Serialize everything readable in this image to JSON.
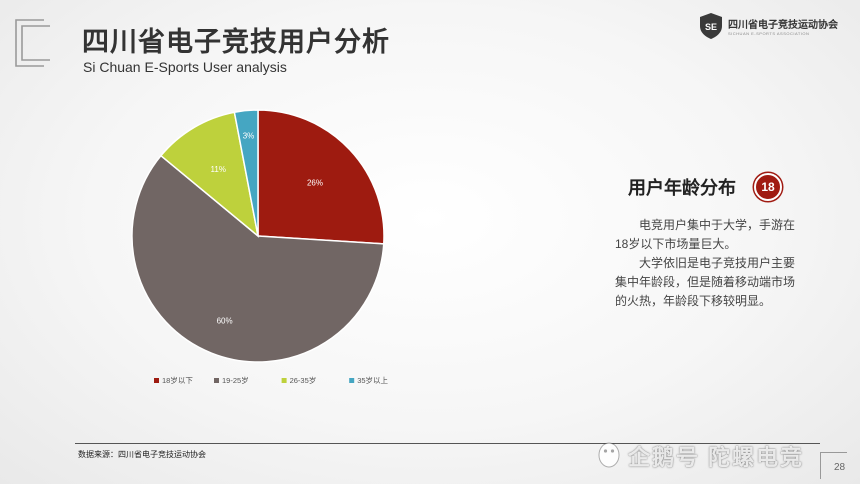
{
  "header": {
    "title": "四川省电子竞技用户分析",
    "subtitle": "Si Chuan E-Sports User analysis"
  },
  "association": {
    "name": "四川省电子竞技运动协会",
    "name_en": "SICHUAN E-SPORTS ASSOCIATION",
    "badge_text": "SE"
  },
  "side": {
    "title": "用户年龄分布",
    "badge": "18",
    "paragraphs": [
      "电竞用户集中于大学，手游在18岁以下市场量巨大。",
      "大学依旧是电子竞技用户主要集中年龄段，但是随着移动端市场的火热，年龄段下移较明显。"
    ]
  },
  "footer": {
    "source": "数据来源：四川省电子竞技运动协会",
    "watermark": "企鹅号 陀螺电竞",
    "page_number": "28"
  },
  "chart_data": {
    "type": "pie",
    "title": "",
    "slices": [
      {
        "label": "18岁以下",
        "value": 26,
        "display": "26%",
        "color": "#9e1b10"
      },
      {
        "label": "19-25岁",
        "value": 60,
        "display": "60%",
        "color": "#716664"
      },
      {
        "label": "26-35岁",
        "value": 11,
        "display": "11%",
        "color": "#bed13c"
      },
      {
        "label": "35岁以上",
        "value": 3,
        "display": "3%",
        "color": "#45a6c2"
      }
    ],
    "start": "12 o'clock",
    "direction": "clockwise",
    "legend_position": "bottom"
  }
}
